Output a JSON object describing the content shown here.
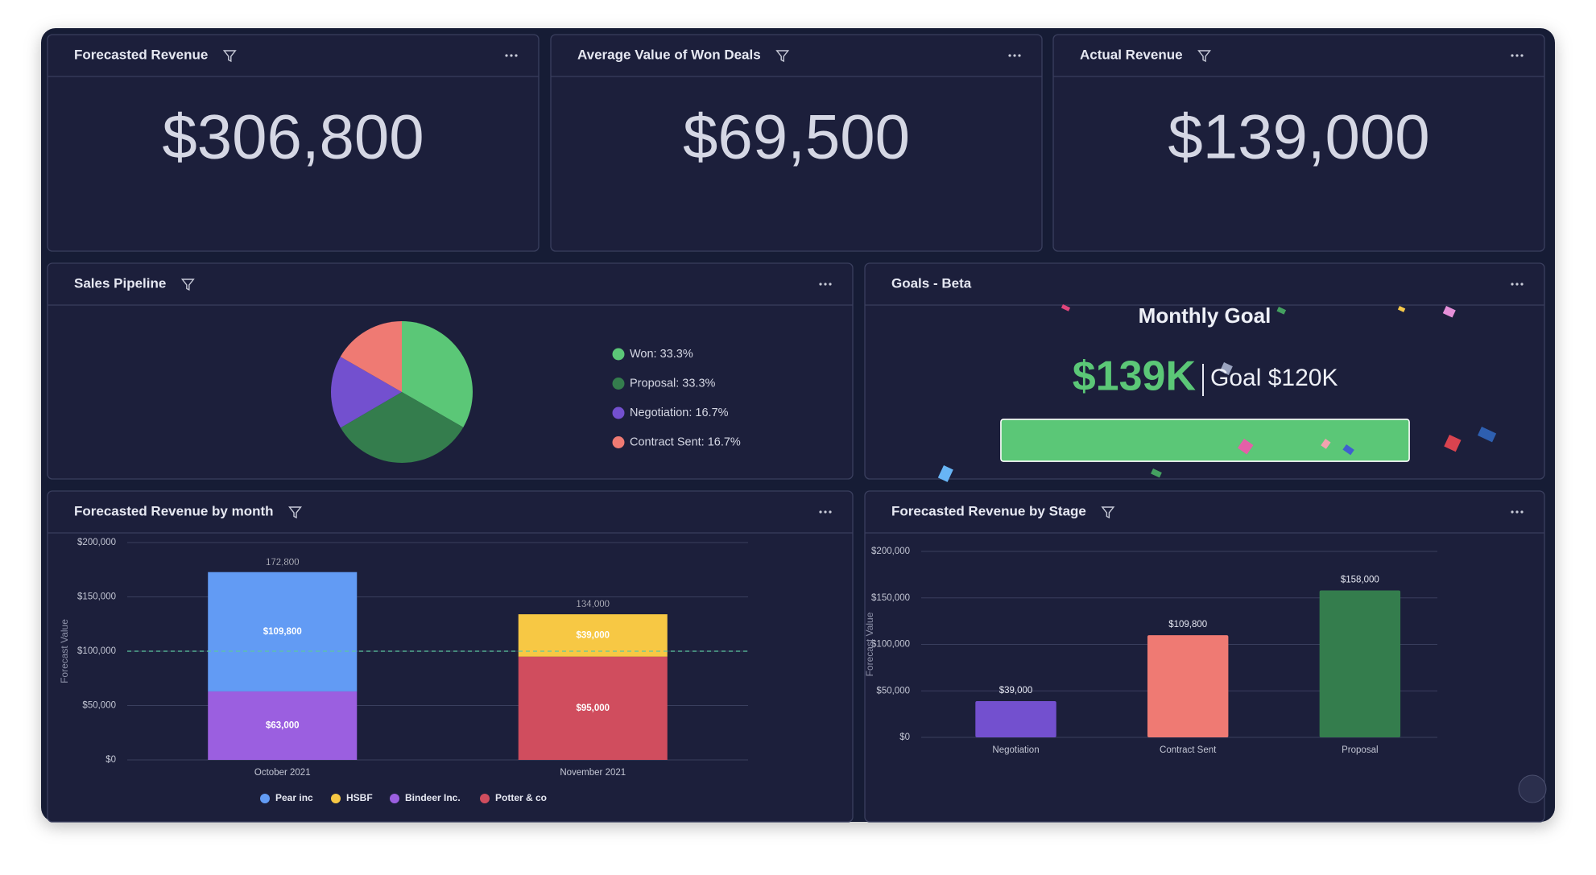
{
  "kpis": [
    {
      "title": "Forecasted Revenue",
      "value": "$306,800"
    },
    {
      "title": "Average Value of Won Deals",
      "value": "$69,500"
    },
    {
      "title": "Actual Revenue",
      "value": "$139,000"
    }
  ],
  "pipeline": {
    "type": "pie",
    "title": "Sales Pipeline",
    "categories": [
      "Won",
      "Proposal",
      "Negotiation",
      "Contract Sent"
    ],
    "values": [
      33.3,
      33.3,
      16.7,
      16.7
    ],
    "value_labels": [
      "Won: 33.3%",
      "Proposal: 33.3%",
      "Negotiation: 16.7%",
      "Contract Sent: 16.7%"
    ],
    "colors": [
      "#5bc777",
      "#347d4d",
      "#7350cf",
      "#ef7a73"
    ]
  },
  "goals": {
    "title": "Goals - Beta",
    "heading": "Monthly Goal",
    "actual": "$139K",
    "goal": "Goal $120K",
    "actual_value": 139000,
    "goal_value": 120000,
    "color": "#5bc777"
  },
  "by_month": {
    "type": "stacked_bar",
    "title": "Forecasted Revenue by month",
    "ylabel": "Forecast Value",
    "categories": [
      "October 2021",
      "November 2021"
    ],
    "series": [
      {
        "name": "Pear inc",
        "color": "#629bf4",
        "values": [
          109800,
          null
        ],
        "value_labels": [
          "$109,800",
          null
        ]
      },
      {
        "name": "HSBF",
        "color": "#f7c844",
        "values": [
          null,
          39000
        ],
        "value_labels": [
          null,
          "$39,000"
        ]
      },
      {
        "name": "Bindeer Inc.",
        "color": "#9b5fe0",
        "values": [
          63000,
          null
        ],
        "value_labels": [
          "$63,000",
          null
        ]
      },
      {
        "name": "Potter & co",
        "color": "#d04d5e",
        "values": [
          null,
          95000
        ],
        "value_labels": [
          null,
          "$95,000"
        ]
      }
    ],
    "totals": [
      172800,
      134000
    ],
    "total_labels": [
      "172,800",
      "134,000"
    ],
    "goal_line": 100000,
    "ylim": [
      0,
      200000
    ],
    "yticks": [
      {
        "value": 0,
        "label": "$0"
      },
      {
        "value": 50000,
        "label": "$50,000"
      },
      {
        "value": 100000,
        "label": "$100,000"
      },
      {
        "value": 150000,
        "label": "$150,000"
      },
      {
        "value": 200000,
        "label": "$200,000"
      }
    ],
    "grid": true
  },
  "by_stage": {
    "type": "bar",
    "title": "Forecasted Revenue by Stage",
    "ylabel": "Forecast Value",
    "categories": [
      "Negotiation",
      "Contract Sent",
      "Proposal"
    ],
    "values": [
      39000,
      109800,
      158000
    ],
    "value_labels": [
      "$39,000",
      "$109,800",
      "$158,000"
    ],
    "colors": [
      "#7350cf",
      "#ef7a73",
      "#347d4d"
    ],
    "ylim": [
      0,
      200000
    ],
    "yticks": [
      {
        "value": 0,
        "label": "$0"
      },
      {
        "value": 50000,
        "label": "$50,000"
      },
      {
        "value": 100000,
        "label": "$100,000"
      },
      {
        "value": 150000,
        "label": "$150,000"
      },
      {
        "value": 200000,
        "label": "$200,000"
      }
    ],
    "grid": true
  }
}
